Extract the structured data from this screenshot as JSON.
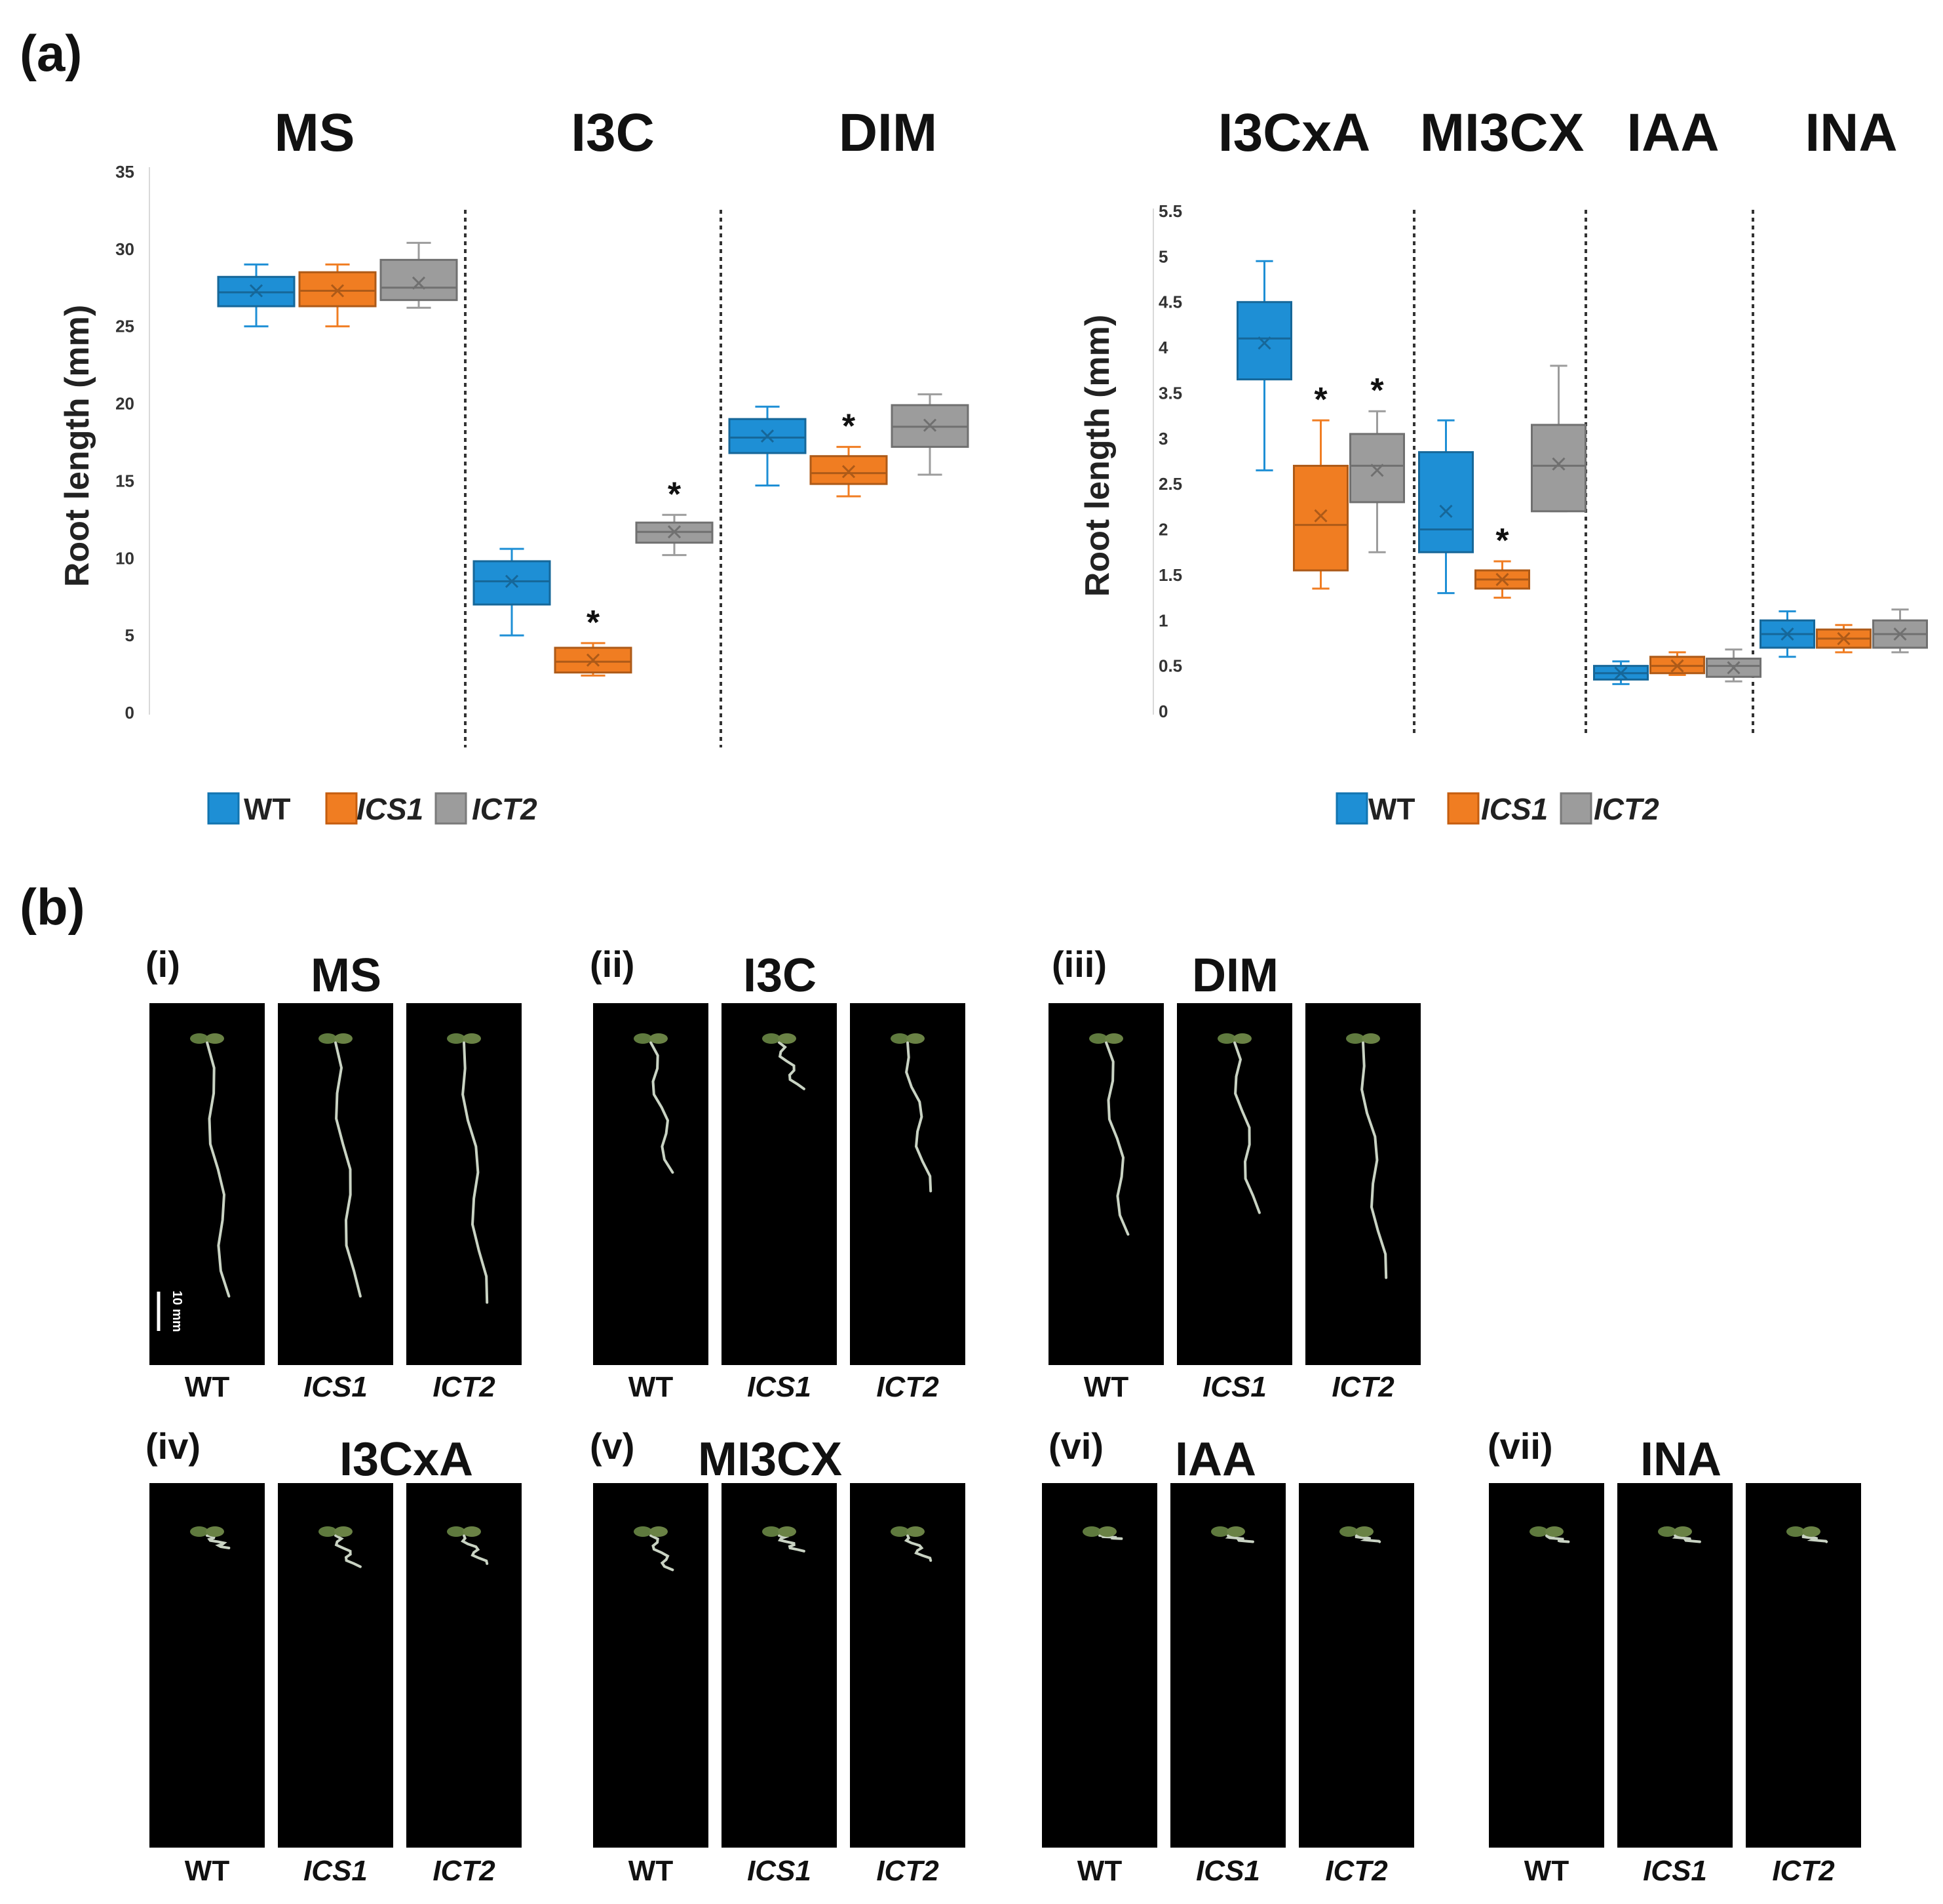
{
  "panel_a_label": "(a)",
  "panel_b_label": "(b)",
  "colors": {
    "WT": "#1e8fd5",
    "ICS1": "#f07d22",
    "ICT2": "#9c9c9c"
  },
  "legend": [
    {
      "name": "WT",
      "italic": false
    },
    {
      "name": "ICS1",
      "italic": true
    },
    {
      "name": "ICT2",
      "italic": true
    }
  ],
  "chart_data": [
    {
      "type": "box",
      "ylabel": "Root length (mm)",
      "ylim": [
        0,
        35
      ],
      "yticks": [
        "0",
        "5",
        "10",
        "15",
        "20",
        "25",
        "30",
        "35"
      ],
      "groups": [
        {
          "condition": "MS",
          "boxes": [
            {
              "series": "WT",
              "min": 25,
              "q1": 26.3,
              "median": 27.2,
              "q3": 28.2,
              "max": 29,
              "mean": 27.3,
              "sig": false
            },
            {
              "series": "ICS1",
              "min": 25,
              "q1": 26.3,
              "median": 27.3,
              "q3": 28.5,
              "max": 29,
              "mean": 27.3,
              "sig": false
            },
            {
              "series": "ICT2",
              "min": 26.2,
              "q1": 26.7,
              "median": 27.5,
              "q3": 29.3,
              "max": 30.4,
              "mean": 27.8,
              "sig": false
            }
          ]
        },
        {
          "condition": "I3C",
          "boxes": [
            {
              "series": "WT",
              "min": 5,
              "q1": 7,
              "median": 8.5,
              "q3": 9.8,
              "max": 10.6,
              "mean": 8.5,
              "sig": false
            },
            {
              "series": "ICS1",
              "min": 2.4,
              "q1": 2.6,
              "median": 3.3,
              "q3": 4.2,
              "max": 4.5,
              "mean": 3.4,
              "sig": true
            },
            {
              "series": "ICT2",
              "min": 10.2,
              "q1": 11,
              "median": 11.7,
              "q3": 12.3,
              "max": 12.8,
              "mean": 11.7,
              "sig": true
            }
          ]
        },
        {
          "condition": "DIM",
          "boxes": [
            {
              "series": "WT",
              "min": 14.7,
              "q1": 16.8,
              "median": 17.8,
              "q3": 19,
              "max": 19.8,
              "mean": 17.9,
              "sig": false
            },
            {
              "series": "ICS1",
              "min": 14,
              "q1": 14.8,
              "median": 15.5,
              "q3": 16.6,
              "max": 17.2,
              "mean": 15.6,
              "sig": true
            },
            {
              "series": "ICT2",
              "min": 15.4,
              "q1": 17.2,
              "median": 18.5,
              "q3": 19.9,
              "max": 20.6,
              "mean": 18.6,
              "sig": false
            }
          ]
        }
      ]
    },
    {
      "type": "box",
      "ylabel": "Root length (mm)",
      "ylim": [
        0,
        5.5
      ],
      "yticks": [
        "0",
        "0.5",
        "1",
        "1.5",
        "2",
        "2.5",
        "3",
        "3.5",
        "4",
        "4.5",
        "5",
        "5.5"
      ],
      "groups": [
        {
          "condition": "I3CxA",
          "boxes": [
            {
              "series": "WT",
              "min": 2.65,
              "q1": 3.65,
              "median": 4.1,
              "q3": 4.5,
              "max": 4.95,
              "mean": 4.05,
              "sig": false
            },
            {
              "series": "ICS1",
              "min": 1.35,
              "q1": 1.55,
              "median": 2.05,
              "q3": 2.7,
              "max": 3.2,
              "mean": 2.15,
              "sig": true
            },
            {
              "series": "ICT2",
              "min": 1.75,
              "q1": 2.3,
              "median": 2.7,
              "q3": 3.05,
              "max": 3.3,
              "mean": 2.65,
              "sig": true
            }
          ]
        },
        {
          "condition": "MI3CX",
          "boxes": [
            {
              "series": "WT",
              "min": 1.3,
              "q1": 1.75,
              "median": 2.0,
              "q3": 2.85,
              "max": 3.2,
              "mean": 2.2,
              "sig": false
            },
            {
              "series": "ICS1",
              "min": 1.25,
              "q1": 1.35,
              "median": 1.45,
              "q3": 1.55,
              "max": 1.65,
              "mean": 1.45,
              "sig": true
            },
            {
              "series": "ICT2",
              "min": 2.2,
              "q1": 2.2,
              "median": 2.7,
              "q3": 3.15,
              "max": 3.8,
              "mean": 2.72,
              "sig": false
            }
          ]
        },
        {
          "condition": "IAA",
          "boxes": [
            {
              "series": "WT",
              "min": 0.3,
              "q1": 0.35,
              "median": 0.42,
              "q3": 0.5,
              "max": 0.55,
              "mean": 0.42,
              "sig": false
            },
            {
              "series": "ICS1",
              "min": 0.4,
              "q1": 0.42,
              "median": 0.5,
              "q3": 0.6,
              "max": 0.65,
              "mean": 0.5,
              "sig": false
            },
            {
              "series": "ICT2",
              "min": 0.33,
              "q1": 0.38,
              "median": 0.5,
              "q3": 0.58,
              "max": 0.68,
              "mean": 0.48,
              "sig": false
            }
          ]
        },
        {
          "condition": "INA",
          "boxes": [
            {
              "series": "WT",
              "min": 0.6,
              "q1": 0.7,
              "median": 0.85,
              "q3": 1.0,
              "max": 1.1,
              "mean": 0.85,
              "sig": false
            },
            {
              "series": "ICS1",
              "min": 0.65,
              "q1": 0.7,
              "median": 0.8,
              "q3": 0.9,
              "max": 0.95,
              "mean": 0.8,
              "sig": false
            },
            {
              "series": "ICT2",
              "min": 0.65,
              "q1": 0.7,
              "median": 0.85,
              "q3": 1.0,
              "max": 1.12,
              "mean": 0.85,
              "sig": false
            }
          ]
        }
      ]
    }
  ],
  "panel_b": {
    "scale_bar": "10 mm",
    "rows": [
      [
        {
          "label": "(i)",
          "condition": "MS",
          "roots": [
            0.82,
            0.82,
            0.84
          ]
        },
        {
          "label": "(ii)",
          "condition": "I3C",
          "roots": [
            0.42,
            0.15,
            0.48
          ]
        },
        {
          "label": "(iii)",
          "condition": "DIM",
          "roots": [
            0.62,
            0.55,
            0.76
          ]
        }
      ],
      [
        {
          "label": "(iv)",
          "condition": "I3CxA",
          "roots": [
            0.04,
            0.1,
            0.09
          ]
        },
        {
          "label": "(v)",
          "condition": "MI3CX",
          "roots": [
            0.11,
            0.05,
            0.08
          ]
        },
        {
          "label": "(vi)",
          "condition": "IAA",
          "roots": [
            0.01,
            0.02,
            0.02
          ]
        },
        {
          "label": "(vii)",
          "condition": "INA",
          "roots": [
            0.02,
            0.02,
            0.02
          ]
        }
      ]
    ],
    "genotypes": [
      {
        "name": "WT",
        "italic": false
      },
      {
        "name": "ICS1",
        "italic": true
      },
      {
        "name": "ICT2",
        "italic": true
      }
    ]
  }
}
